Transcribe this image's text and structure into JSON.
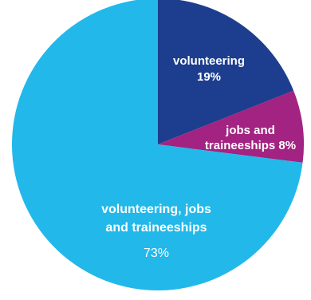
{
  "chart_data": {
    "type": "pie",
    "title": "",
    "start_angle_deg": 0,
    "direction": "clockwise",
    "slices": [
      {
        "label_lines": [
          "volunteering",
          "19%"
        ],
        "value": 19,
        "color": "#1d3e8e"
      },
      {
        "label_lines": [
          "jobs and",
          "traineeships 8%"
        ],
        "value": 8,
        "color": "#a22381"
      },
      {
        "label_lines": [
          "volunteering, jobs",
          "and traineeships",
          "73%"
        ],
        "value": 73,
        "color": "#22b8ea"
      }
    ]
  }
}
